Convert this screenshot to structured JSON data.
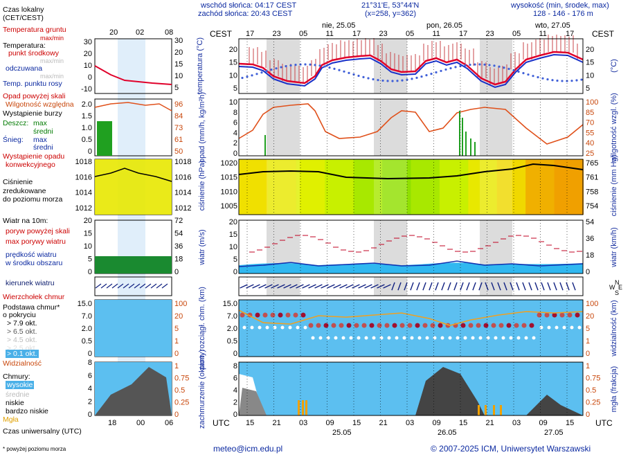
{
  "header": {
    "sunrise": "wschód słońca: 04:17 CEST",
    "sunset": "zachód słońca: 20:43 CEST",
    "coords": "21°31'E, 53°44'N",
    "grid": "(x=258, y=362)",
    "height_title": "wysokość (min, środek, max)",
    "height_values": "128 - 146 - 176 m"
  },
  "legend": {
    "local_time": "Czas lokalny",
    "local_time_zone": "(CET/CEST)",
    "mini_hours": [
      "20",
      "02",
      "08"
    ],
    "mini_utc_hours": [
      "18",
      "00",
      "06"
    ],
    "ground_temp": "Temperatura gruntu",
    "ground_temp_sub": "max/min",
    "temperature": "Temperatura:",
    "mid_point": "punkt środkowy",
    "max_min": "max/min",
    "perceived": "odczuwana",
    "perceived_sub": "max/min",
    "dew_point": "Temp. punktu rosy",
    "precip_above": "Opad powyżej skali",
    "humidity": "Wilgotność względna",
    "storm": "Wystąpienie burzy",
    "rain": "Deszcz:",
    "rain_max": "max",
    "rain_mean": "średni",
    "snow": "Śnieg:",
    "snow_max": "max",
    "snow_mean": "średni",
    "conv_precip": "Wystąpienie opadu",
    "conv_precip2": "konwekcyjnego",
    "pressure": "Ciśnienie",
    "pressure2": "zredukowane",
    "pressure3": "do poziomu morza",
    "wind_at": "Wiatr na 10m:",
    "gusts_above": "poryw powyżej skali",
    "max_gusts": "max porywy wiatru",
    "wind_speed": "prędkość wiatru",
    "wind_area": "w środku obszaru",
    "wind_dir": "kierunek wiatru",
    "cloud_top": "Wierzchołek chmur",
    "cloud_base": "Podstawa chmur*",
    "cloud_base2": "o pokryciu",
    "okt": [
      "> 7.9 okt.",
      "> 6.5 okt.",
      "> 4.5 okt.",
      "> 2.5 okt.",
      "> 0.1 okt."
    ],
    "visibility": "Widzialność",
    "clouds": "Chmury:",
    "high": "wysokie",
    "mid": "średnie",
    "low": "niskie",
    "very_low": "bardzo niskie",
    "fog": "Mgła",
    "utc_time": "Czas uniwersalny (UTC)",
    "footnote": "* powyżej poziomu morza"
  },
  "mini_axes": {
    "temp_left": [
      "30",
      "20",
      "10",
      "0",
      "-10"
    ],
    "temp_right": [
      "30",
      "20",
      "15",
      "10",
      "5",
      "0",
      "-10"
    ],
    "precip_left": [
      "2.0",
      "1.5",
      "1.0",
      "0.5",
      "0"
    ],
    "hum_right": [
      "96",
      "84",
      "73",
      "61",
      "50"
    ],
    "pres_left": [
      "1018",
      "1016",
      "1014",
      "1012"
    ],
    "pres_right": [
      "1018",
      "1016",
      "1014",
      "1012"
    ],
    "wind_left": [
      "20",
      "15",
      "10",
      "5",
      "0"
    ],
    "wind_right": [
      "72",
      "54",
      "36",
      "18",
      "0"
    ],
    "cloud_left": [
      "15.0",
      "7.0",
      "2.0",
      "0.5",
      "0"
    ],
    "cloud_right": [
      "100",
      "20",
      "5",
      "1",
      "0"
    ],
    "cover_left": [
      "8",
      "6",
      "4",
      "2",
      "0"
    ],
    "cover_right": [
      "1",
      "0.75",
      "0.5",
      "0.25",
      "0"
    ]
  },
  "main": {
    "tz_left": "CEST",
    "tz_right": "CEST",
    "days": [
      "nie, 25.05",
      "pon, 26.05",
      "wto, 27.05"
    ],
    "top_hours": [
      "17",
      "23",
      "05",
      "11",
      "17",
      "23",
      "05",
      "11",
      "17",
      "23",
      "05",
      "11",
      "17"
    ],
    "utc_label": "UTC",
    "bottom_hours": [
      "15",
      "21",
      "03",
      "09",
      "15",
      "21",
      "03",
      "09",
      "15",
      "21",
      "03",
      "09",
      "15"
    ],
    "bottom_dates": [
      "25.05",
      "26.05",
      "27.05"
    ],
    "temp_ticks": [
      "20",
      "15",
      "10",
      "5"
    ],
    "temp_label": "temperatura (°C)",
    "temp_label_r": "(°C)",
    "precip_ticks": [
      "10",
      "8",
      "6",
      "4",
      "2",
      "0"
    ],
    "precip_label": "opad (mm/h, kg/m²h)",
    "hum_ticks": [
      "100",
      "85",
      "70",
      "55",
      "40",
      "25"
    ],
    "hum_label": "wilgotność wzgl. (%)",
    "pres_ticks": [
      "1020",
      "1015",
      "1010",
      "1005"
    ],
    "pres_label": "ciśnienie (hPa)",
    "pres_ticks_r": [
      "765",
      "761",
      "758",
      "754"
    ],
    "pres_label_r": "ciśnienie (mm Hg)",
    "wind_ticks": [
      "20",
      "15",
      "10",
      "5",
      "0"
    ],
    "wind_label": "wiatr (m/s)",
    "wind_ticks_r": [
      "54",
      "36",
      "18",
      "0"
    ],
    "wind_label_r": "wiatr (km/h)",
    "compass": [
      "N",
      "W",
      "E",
      "S"
    ],
    "cloud_ticks": [
      "15.0",
      "7.0",
      "2.0",
      "0.5",
      "0"
    ],
    "cloud_label": "pion. rozciągł. chm. (km)",
    "vis_ticks": [
      "100",
      "20",
      "5",
      "1",
      "0"
    ],
    "vis_label": "widzialność (km)",
    "cover_ticks": [
      "8",
      "6",
      "4",
      "2",
      "0"
    ],
    "cover_label": "zachmurzenie (oktanty)",
    "fog_ticks": [
      "1",
      "0.75",
      "0.5",
      "0.25",
      "0"
    ],
    "fog_label": "mgła (frakcja)"
  },
  "footer": {
    "email": "meteo@icm.edu.pl",
    "copyright": "© 2007-2025 ICM, Uniwersytet Warszawski"
  },
  "colors": {
    "temp_line": "#e0002a",
    "perceived_line": "#1830c8",
    "humidity": "#e0501a",
    "pressure_line": "#000000",
    "wind_area": "#00a0e8",
    "cloud_bg": "#5cbff0",
    "night_band": "#d9d9d9"
  }
}
